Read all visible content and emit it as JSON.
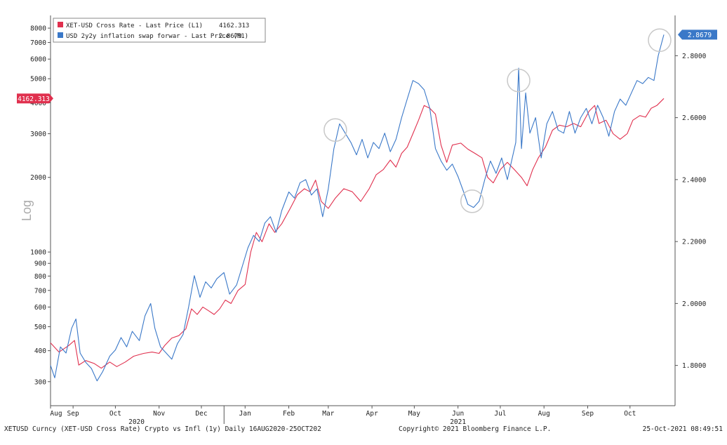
{
  "chart_data": {
    "type": "line",
    "title": "",
    "xlabel": "",
    "ylabel_left": "Log",
    "ylabel_right": "",
    "scale_left": "log",
    "grid": false,
    "legend_position": "top-left",
    "x_range": [
      "2020-08-16",
      "2021-10-25"
    ],
    "x_month_ticks": [
      {
        "date": "2020-08-16",
        "label": "Aug"
      },
      {
        "date": "2020-09-01",
        "label": "Sep"
      },
      {
        "date": "2020-10-01",
        "label": "Oct"
      },
      {
        "date": "2020-11-01",
        "label": "Nov"
      },
      {
        "date": "2020-12-01",
        "label": "Dec"
      },
      {
        "date": "2021-01-01",
        "label": "Jan"
      },
      {
        "date": "2021-02-01",
        "label": "Feb"
      },
      {
        "date": "2021-03-01",
        "label": "Mar"
      },
      {
        "date": "2021-04-01",
        "label": "Apr"
      },
      {
        "date": "2021-05-01",
        "label": "May"
      },
      {
        "date": "2021-06-01",
        "label": "Jun"
      },
      {
        "date": "2021-07-01",
        "label": "Jul"
      },
      {
        "date": "2021-08-01",
        "label": "Aug"
      },
      {
        "date": "2021-09-01",
        "label": "Sep"
      },
      {
        "date": "2021-10-01",
        "label": "Oct"
      }
    ],
    "x_year_labels": [
      {
        "date": "2020-10-16",
        "label": "2020"
      },
      {
        "date": "2021-06-01",
        "label": "2021"
      }
    ],
    "y_left": {
      "range": [
        240,
        9000
      ],
      "ticks": [
        300,
        400,
        500,
        600,
        700,
        800,
        900,
        1000,
        2000,
        3000,
        4000,
        5000,
        6000,
        7000,
        8000
      ],
      "tick_labels": [
        "300",
        "400",
        "500",
        "600",
        "700",
        "800",
        "900",
        "1000",
        "2000",
        "3000",
        "4000",
        "5000",
        "6000",
        "7000",
        "8000"
      ]
    },
    "y_right": {
      "range": [
        1.67,
        2.93
      ],
      "ticks": [
        1.8,
        2.0,
        2.2,
        2.4,
        2.6,
        2.8
      ],
      "tick_labels": [
        "1.8000",
        "2.0000",
        "2.2000",
        "2.4000",
        "2.6000",
        "2.8000"
      ]
    },
    "series": [
      {
        "name": "XET-USD Cross Rate - Last Price (L1)",
        "last_value": "4162.313",
        "axis": "left",
        "color": "#e0304e",
        "points": [
          [
            "2020-08-16",
            430
          ],
          [
            "2020-08-22",
            395
          ],
          [
            "2020-08-29",
            420
          ],
          [
            "2020-09-02",
            440
          ],
          [
            "2020-09-05",
            350
          ],
          [
            "2020-09-10",
            365
          ],
          [
            "2020-09-16",
            355
          ],
          [
            "2020-09-21",
            340
          ],
          [
            "2020-09-27",
            360
          ],
          [
            "2020-10-02",
            345
          ],
          [
            "2020-10-08",
            360
          ],
          [
            "2020-10-14",
            380
          ],
          [
            "2020-10-21",
            390
          ],
          [
            "2020-10-27",
            395
          ],
          [
            "2020-11-01",
            390
          ],
          [
            "2020-11-05",
            420
          ],
          [
            "2020-11-10",
            450
          ],
          [
            "2020-11-15",
            460
          ],
          [
            "2020-11-20",
            490
          ],
          [
            "2020-11-24",
            590
          ],
          [
            "2020-11-28",
            560
          ],
          [
            "2020-12-02",
            600
          ],
          [
            "2020-12-06",
            580
          ],
          [
            "2020-12-10",
            560
          ],
          [
            "2020-12-14",
            590
          ],
          [
            "2020-12-18",
            640
          ],
          [
            "2020-12-22",
            620
          ],
          [
            "2020-12-27",
            700
          ],
          [
            "2021-01-01",
            740
          ],
          [
            "2021-01-05",
            1000
          ],
          [
            "2021-01-09",
            1200
          ],
          [
            "2021-01-13",
            1100
          ],
          [
            "2021-01-18",
            1300
          ],
          [
            "2021-01-22",
            1200
          ],
          [
            "2021-01-27",
            1300
          ],
          [
            "2021-02-02",
            1500
          ],
          [
            "2021-02-07",
            1700
          ],
          [
            "2021-02-12",
            1800
          ],
          [
            "2021-02-16",
            1750
          ],
          [
            "2021-02-20",
            1950
          ],
          [
            "2021-02-24",
            1600
          ],
          [
            "2021-03-01",
            1500
          ],
          [
            "2021-03-06",
            1650
          ],
          [
            "2021-03-12",
            1800
          ],
          [
            "2021-03-18",
            1750
          ],
          [
            "2021-03-24",
            1600
          ],
          [
            "2021-03-30",
            1800
          ],
          [
            "2021-04-04",
            2050
          ],
          [
            "2021-04-09",
            2150
          ],
          [
            "2021-04-14",
            2350
          ],
          [
            "2021-04-18",
            2200
          ],
          [
            "2021-04-22",
            2500
          ],
          [
            "2021-04-26",
            2650
          ],
          [
            "2021-04-30",
            3000
          ],
          [
            "2021-05-04",
            3400
          ],
          [
            "2021-05-08",
            3900
          ],
          [
            "2021-05-12",
            3800
          ],
          [
            "2021-05-16",
            3600
          ],
          [
            "2021-05-20",
            2700
          ],
          [
            "2021-05-24",
            2300
          ],
          [
            "2021-05-28",
            2700
          ],
          [
            "2021-06-03",
            2750
          ],
          [
            "2021-06-08",
            2600
          ],
          [
            "2021-06-13",
            2500
          ],
          [
            "2021-06-18",
            2400
          ],
          [
            "2021-06-22",
            2000
          ],
          [
            "2021-06-26",
            1900
          ],
          [
            "2021-07-01",
            2150
          ],
          [
            "2021-07-06",
            2300
          ],
          [
            "2021-07-11",
            2150
          ],
          [
            "2021-07-16",
            2000
          ],
          [
            "2021-07-20",
            1850
          ],
          [
            "2021-07-24",
            2150
          ],
          [
            "2021-07-28",
            2400
          ],
          [
            "2021-08-02",
            2650
          ],
          [
            "2021-08-07",
            3100
          ],
          [
            "2021-08-12",
            3250
          ],
          [
            "2021-08-17",
            3200
          ],
          [
            "2021-08-22",
            3300
          ],
          [
            "2021-08-27",
            3200
          ],
          [
            "2021-09-02",
            3700
          ],
          [
            "2021-09-06",
            3900
          ],
          [
            "2021-09-09",
            3300
          ],
          [
            "2021-09-14",
            3400
          ],
          [
            "2021-09-19",
            3000
          ],
          [
            "2021-09-24",
            2850
          ],
          [
            "2021-09-29",
            3000
          ],
          [
            "2021-10-03",
            3400
          ],
          [
            "2021-10-08",
            3550
          ],
          [
            "2021-10-12",
            3500
          ],
          [
            "2021-10-16",
            3800
          ],
          [
            "2021-10-20",
            3900
          ],
          [
            "2021-10-25",
            4162.313
          ]
        ]
      },
      {
        "name": "USD 2y2y inflation swap forwar - Last Price (R1)",
        "last_value": "2.8679",
        "axis": "right",
        "color": "#3a78c8",
        "points": [
          [
            "2020-08-16",
            1.8
          ],
          [
            "2020-08-19",
            1.76
          ],
          [
            "2020-08-23",
            1.86
          ],
          [
            "2020-08-27",
            1.84
          ],
          [
            "2020-08-31",
            1.92
          ],
          [
            "2020-09-03",
            1.95
          ],
          [
            "2020-09-06",
            1.84
          ],
          [
            "2020-09-10",
            1.81
          ],
          [
            "2020-09-14",
            1.79
          ],
          [
            "2020-09-18",
            1.75
          ],
          [
            "2020-09-22",
            1.78
          ],
          [
            "2020-09-27",
            1.83
          ],
          [
            "2020-10-01",
            1.85
          ],
          [
            "2020-10-05",
            1.89
          ],
          [
            "2020-10-09",
            1.86
          ],
          [
            "2020-10-13",
            1.91
          ],
          [
            "2020-10-18",
            1.88
          ],
          [
            "2020-10-22",
            1.96
          ],
          [
            "2020-10-26",
            2.0
          ],
          [
            "2020-10-29",
            1.92
          ],
          [
            "2020-11-02",
            1.86
          ],
          [
            "2020-11-06",
            1.84
          ],
          [
            "2020-11-10",
            1.82
          ],
          [
            "2020-11-14",
            1.87
          ],
          [
            "2020-11-18",
            1.9
          ],
          [
            "2020-11-22",
            1.99
          ],
          [
            "2020-11-26",
            2.09
          ],
          [
            "2020-11-30",
            2.02
          ],
          [
            "2020-12-04",
            2.07
          ],
          [
            "2020-12-08",
            2.05
          ],
          [
            "2020-12-12",
            2.08
          ],
          [
            "2020-12-17",
            2.1
          ],
          [
            "2020-12-21",
            2.03
          ],
          [
            "2020-12-26",
            2.06
          ],
          [
            "2020-12-30",
            2.12
          ],
          [
            "2021-01-03",
            2.18
          ],
          [
            "2021-01-07",
            2.22
          ],
          [
            "2021-01-11",
            2.2
          ],
          [
            "2021-01-15",
            2.26
          ],
          [
            "2021-01-19",
            2.28
          ],
          [
            "2021-01-23",
            2.23
          ],
          [
            "2021-01-27",
            2.3
          ],
          [
            "2021-02-01",
            2.36
          ],
          [
            "2021-02-05",
            2.34
          ],
          [
            "2021-02-09",
            2.39
          ],
          [
            "2021-02-13",
            2.4
          ],
          [
            "2021-02-17",
            2.35
          ],
          [
            "2021-02-21",
            2.37
          ],
          [
            "2021-02-25",
            2.28
          ],
          [
            "2021-03-01",
            2.37
          ],
          [
            "2021-03-05",
            2.5
          ],
          [
            "2021-03-09",
            2.58
          ],
          [
            "2021-03-13",
            2.55
          ],
          [
            "2021-03-17",
            2.52
          ],
          [
            "2021-03-21",
            2.48
          ],
          [
            "2021-03-25",
            2.53
          ],
          [
            "2021-03-29",
            2.47
          ],
          [
            "2021-04-02",
            2.52
          ],
          [
            "2021-04-06",
            2.5
          ],
          [
            "2021-04-10",
            2.55
          ],
          [
            "2021-04-14",
            2.49
          ],
          [
            "2021-04-18",
            2.53
          ],
          [
            "2021-04-22",
            2.6
          ],
          [
            "2021-04-26",
            2.66
          ],
          [
            "2021-04-30",
            2.72
          ],
          [
            "2021-05-04",
            2.71
          ],
          [
            "2021-05-08",
            2.69
          ],
          [
            "2021-05-12",
            2.63
          ],
          [
            "2021-05-16",
            2.5
          ],
          [
            "2021-05-20",
            2.46
          ],
          [
            "2021-05-24",
            2.43
          ],
          [
            "2021-05-28",
            2.45
          ],
          [
            "2021-06-01",
            2.41
          ],
          [
            "2021-06-05",
            2.36
          ],
          [
            "2021-06-08",
            2.32
          ],
          [
            "2021-06-12",
            2.31
          ],
          [
            "2021-06-16",
            2.33
          ],
          [
            "2021-06-20",
            2.4
          ],
          [
            "2021-06-24",
            2.46
          ],
          [
            "2021-06-28",
            2.42
          ],
          [
            "2021-07-02",
            2.47
          ],
          [
            "2021-07-06",
            2.4
          ],
          [
            "2021-07-09",
            2.46
          ],
          [
            "2021-07-12",
            2.52
          ],
          [
            "2021-07-14",
            2.76
          ],
          [
            "2021-07-16",
            2.5
          ],
          [
            "2021-07-19",
            2.68
          ],
          [
            "2021-07-22",
            2.55
          ],
          [
            "2021-07-26",
            2.6
          ],
          [
            "2021-07-30",
            2.47
          ],
          [
            "2021-08-03",
            2.58
          ],
          [
            "2021-08-07",
            2.62
          ],
          [
            "2021-08-11",
            2.56
          ],
          [
            "2021-08-15",
            2.55
          ],
          [
            "2021-08-19",
            2.62
          ],
          [
            "2021-08-23",
            2.55
          ],
          [
            "2021-08-27",
            2.6
          ],
          [
            "2021-08-31",
            2.63
          ],
          [
            "2021-09-04",
            2.58
          ],
          [
            "2021-09-08",
            2.64
          ],
          [
            "2021-09-12",
            2.6
          ],
          [
            "2021-09-16",
            2.54
          ],
          [
            "2021-09-20",
            2.62
          ],
          [
            "2021-09-24",
            2.66
          ],
          [
            "2021-09-28",
            2.64
          ],
          [
            "2021-10-02",
            2.68
          ],
          [
            "2021-10-06",
            2.72
          ],
          [
            "2021-10-10",
            2.71
          ],
          [
            "2021-10-14",
            2.73
          ],
          [
            "2021-10-18",
            2.72
          ],
          [
            "2021-10-21",
            2.8
          ],
          [
            "2021-10-25",
            2.8679
          ]
        ]
      }
    ],
    "annotations": [
      {
        "shape": "circle",
        "date": "2021-03-06",
        "y_right": 2.56
      },
      {
        "shape": "circle",
        "date": "2021-06-11",
        "y_right": 2.33
      },
      {
        "shape": "circle",
        "date": "2021-07-14",
        "y_right": 2.72
      },
      {
        "shape": "circle",
        "date": "2021-10-22",
        "y_right": 2.85
      }
    ]
  },
  "footer": {
    "ticker": "XETUSD Curncy (XET-USD Cross Rate) Crypto vs Infl (1y)  Daily 16AUG2020-25OCT202",
    "copyright": "Copyright© 2021 Bloomberg Finance L.P.",
    "timestamp": "25-Oct-2021 08:49:51"
  }
}
